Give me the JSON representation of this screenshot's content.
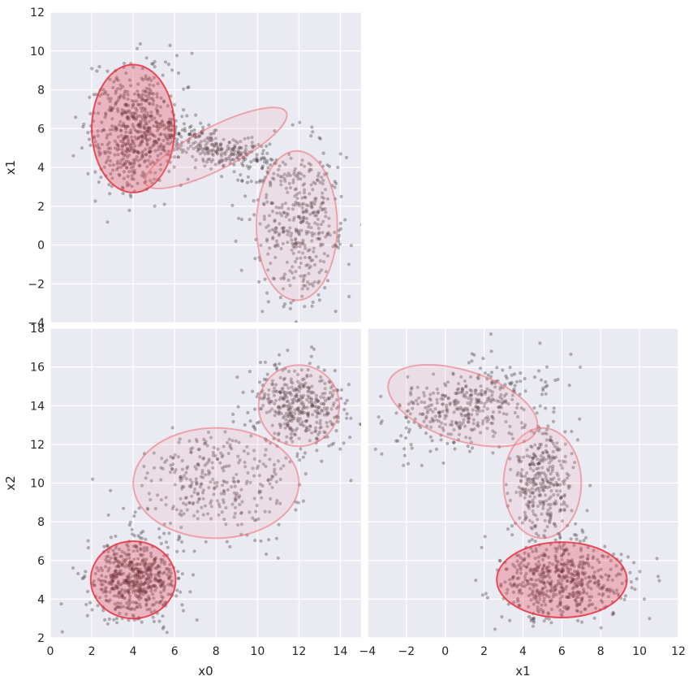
{
  "chart_data": [
    {
      "type": "scatter",
      "panel": "x0 vs x1",
      "xlabel": "",
      "ylabel": "x1",
      "xlim": [
        0,
        15
      ],
      "ylim": [
        -4,
        12
      ],
      "xticks": [
        0,
        2,
        4,
        6,
        8,
        10,
        12,
        14
      ],
      "yticks": [
        "−4",
        "−2",
        "0",
        "2",
        "4",
        "6",
        "8",
        "10",
        "12"
      ],
      "grid": true,
      "clusters": [
        {
          "center": [
            4,
            6
          ],
          "sd": [
            1.05,
            1.6
          ],
          "corr": 0.0,
          "n": 560
        },
        {
          "center": [
            8,
            5
          ],
          "sd": [
            1.8,
            0.8
          ],
          "corr": -0.75,
          "n": 330
        },
        {
          "center": [
            12,
            1
          ],
          "sd": [
            1.1,
            2.1
          ],
          "corr": 0.0,
          "n": 400
        }
      ],
      "ellipses": [
        {
          "center": [
            4,
            6
          ],
          "semi_axes": [
            2.0,
            3.3
          ],
          "angle_deg": 0,
          "fill": "#e83c4c",
          "fill_opacity": 0.3,
          "stroke": "#e8323e",
          "stroke_opacity": 0.85
        },
        {
          "center": [
            8,
            5
          ],
          "semi_axes": [
            3.8,
            1.1
          ],
          "angle_deg": -27,
          "fill": "#f1a6b0",
          "fill_opacity": 0.18,
          "stroke": "#ee6b78",
          "stroke_opacity": 0.55
        },
        {
          "center": [
            11.9,
            1
          ],
          "semi_axes": [
            1.95,
            3.85
          ],
          "angle_deg": 0,
          "fill": "#f1a6b0",
          "fill_opacity": 0.18,
          "stroke": "#ee6b78",
          "stroke_opacity": 0.55
        }
      ]
    },
    {
      "type": "scatter",
      "panel": "x0 vs x2",
      "xlabel": "x0",
      "ylabel": "x2",
      "xlim": [
        0,
        15
      ],
      "ylim": [
        2,
        18
      ],
      "xticks": [
        0,
        2,
        4,
        6,
        8,
        10,
        12,
        14
      ],
      "yticks": [
        "2",
        "4",
        "6",
        "8",
        "10",
        "12",
        "14",
        "16",
        "18"
      ],
      "grid": true,
      "clusters": [
        {
          "center": [
            4,
            5
          ],
          "sd": [
            1.05,
            1.0
          ],
          "corr": 0.0,
          "n": 560
        },
        {
          "center": [
            8,
            10
          ],
          "sd": [
            1.9,
            1.4
          ],
          "corr": 0.0,
          "n": 330
        },
        {
          "center": [
            12,
            14
          ],
          "sd": [
            1.1,
            1.1
          ],
          "corr": 0.0,
          "n": 400
        }
      ],
      "ellipses": [
        {
          "center": [
            4,
            5
          ],
          "semi_axes": [
            2.05,
            2.0
          ],
          "angle_deg": 0,
          "fill": "#e83c4c",
          "fill_opacity": 0.3,
          "stroke": "#e8323e",
          "stroke_opacity": 0.85
        },
        {
          "center": [
            8,
            10
          ],
          "semi_axes": [
            4.0,
            2.85
          ],
          "angle_deg": 0,
          "fill": "#f1a6b0",
          "fill_opacity": 0.18,
          "stroke": "#ee6b78",
          "stroke_opacity": 0.55
        },
        {
          "center": [
            12,
            14
          ],
          "semi_axes": [
            1.95,
            2.1
          ],
          "angle_deg": 0,
          "fill": "#f1a6b0",
          "fill_opacity": 0.18,
          "stroke": "#ee6b78",
          "stroke_opacity": 0.55
        }
      ]
    },
    {
      "type": "scatter",
      "panel": "x1 vs x2",
      "xlabel": "x1",
      "ylabel": "",
      "xlim": [
        -4,
        12
      ],
      "ylim": [
        2,
        18
      ],
      "xticks": [
        "−4",
        "−2",
        "0",
        "2",
        "4",
        "6",
        "8",
        "10",
        "12"
      ],
      "yticks": [],
      "grid": true,
      "clusters": [
        {
          "center": [
            6,
            5
          ],
          "sd": [
            1.6,
            1.0
          ],
          "corr": 0.0,
          "n": 560
        },
        {
          "center": [
            5,
            10
          ],
          "sd": [
            0.8,
            1.4
          ],
          "corr": 0.0,
          "n": 330
        },
        {
          "center": [
            1,
            14
          ],
          "sd": [
            2.1,
            1.1
          ],
          "corr": 0.45,
          "n": 400
        }
      ],
      "ellipses": [
        {
          "center": [
            6,
            5
          ],
          "semi_axes": [
            3.35,
            1.95
          ],
          "angle_deg": 0,
          "fill": "#e83c4c",
          "fill_opacity": 0.3,
          "stroke": "#e8323e",
          "stroke_opacity": 0.85
        },
        {
          "center": [
            5,
            10
          ],
          "semi_axes": [
            2.0,
            2.85
          ],
          "angle_deg": 0,
          "fill": "#f1a6b0",
          "fill_opacity": 0.18,
          "stroke": "#ee6b78",
          "stroke_opacity": 0.55
        },
        {
          "center": [
            0.9,
            14
          ],
          "semi_axes": [
            4.0,
            1.8
          ],
          "angle_deg": 18,
          "fill": "#f1a6b0",
          "fill_opacity": 0.18,
          "stroke": "#ee6b78",
          "stroke_opacity": 0.55
        }
      ]
    }
  ]
}
